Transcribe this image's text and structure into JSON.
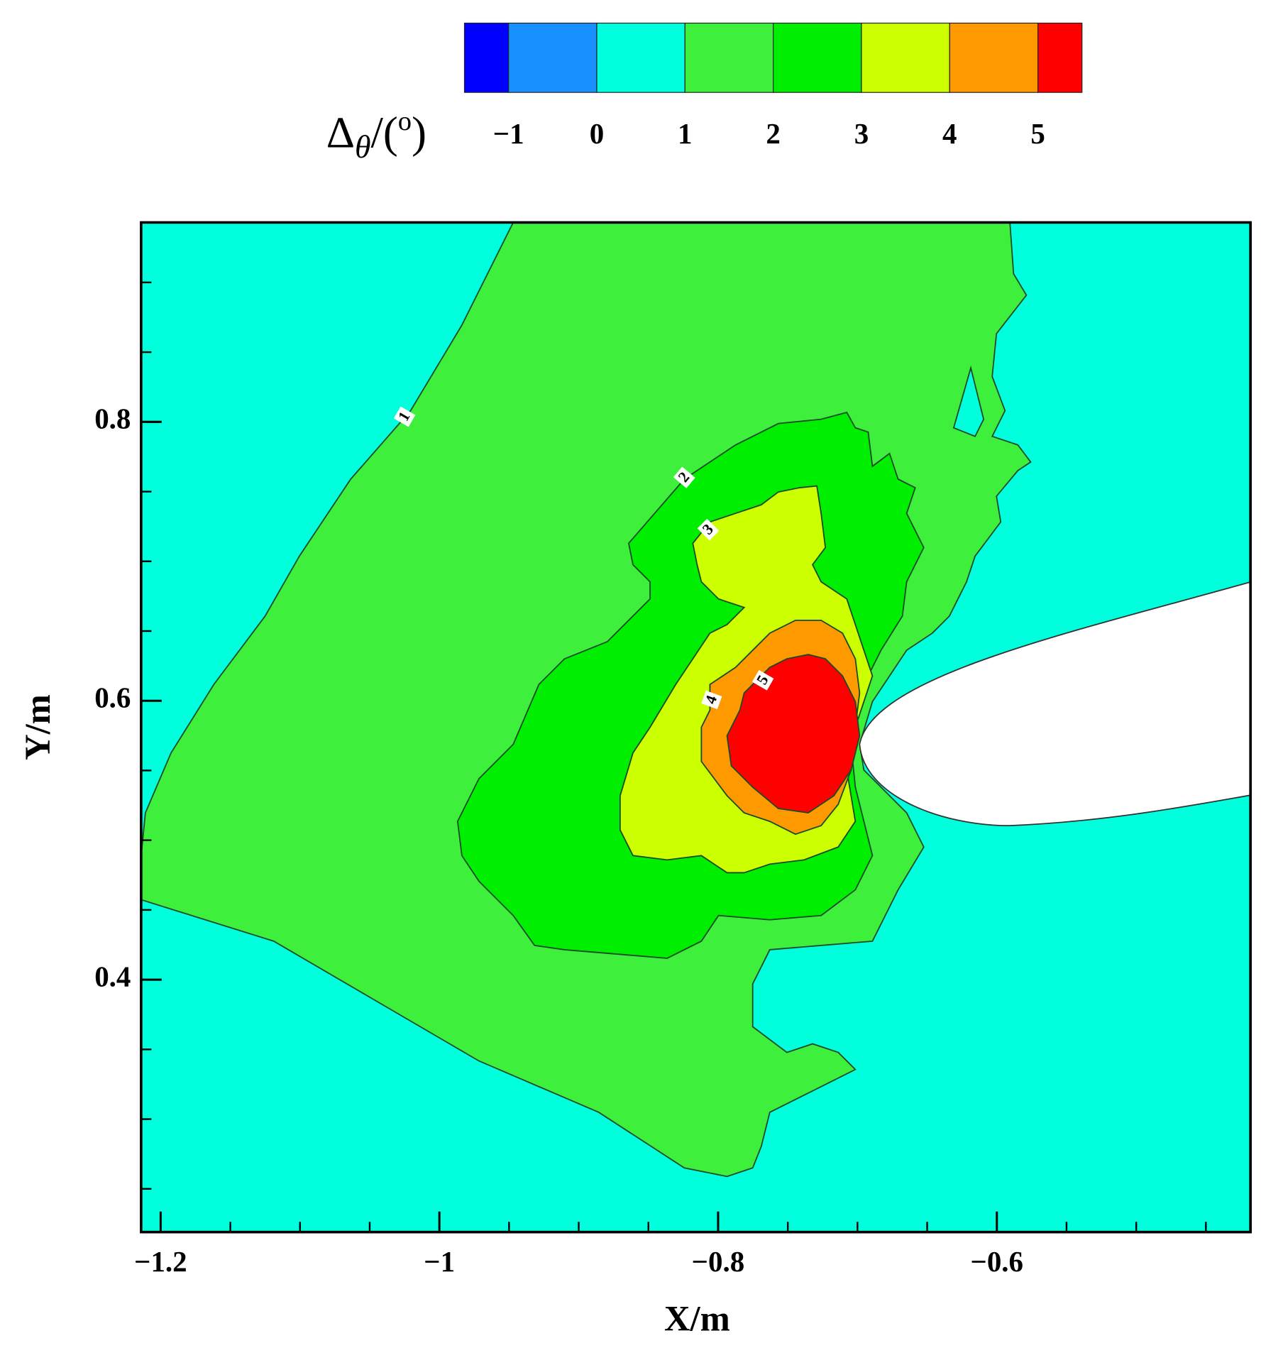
{
  "chart_data": {
    "type": "contour",
    "xlabel": "X/m",
    "ylabel": "Y/m",
    "xlim": [
      -1.214,
      -0.418
    ],
    "ylim": [
      0.219,
      0.943
    ],
    "xticks": [
      {
        "value": -1.2,
        "label": "−1.2"
      },
      {
        "value": -1,
        "label": "−1"
      },
      {
        "value": -0.8,
        "label": "−0.8"
      },
      {
        "value": -0.6,
        "label": "−0.6"
      }
    ],
    "yticks": [
      0.4,
      0.6,
      0.8
    ],
    "xminorticks": [
      -1.15,
      -1.1,
      -1.05,
      -0.95,
      -0.9,
      -0.85,
      -0.75,
      -0.7,
      -0.65,
      -0.55,
      -0.5,
      -0.45
    ],
    "yminorticks": [
      0.25,
      0.3,
      0.35,
      0.45,
      0.5,
      0.55,
      0.65,
      0.7,
      0.75,
      0.85,
      0.9
    ],
    "colorbar": {
      "label": [
        "Δ",
        "θ",
        "/(",
        "o",
        ")"
      ],
      "ticks": [
        {
          "value": -1,
          "label": "−1"
        },
        0,
        1,
        2,
        3,
        4,
        5
      ],
      "colors": [
        "#0000ff",
        "#1890ff",
        "#00ffdd",
        "#3ef03c",
        "#00ee00",
        "#ccff00",
        "#ff9900",
        "#ff0000"
      ]
    },
    "contour_labels": [
      1,
      2,
      3,
      4,
      5
    ]
  }
}
